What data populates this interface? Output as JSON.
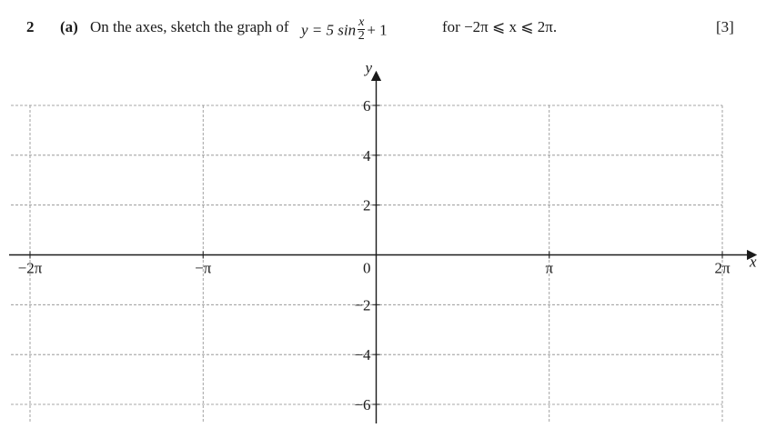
{
  "question": {
    "number": "2",
    "part": "(a)",
    "instruction": "On the axes, sketch the graph of",
    "formula_lhs": "y = 5 sin",
    "formula_num": "x",
    "formula_den": "2",
    "formula_rhs": "+ 1",
    "domain": "for   −2π ⩽ x ⩽ 2π.",
    "marks": "[3]"
  },
  "chart_data": {
    "type": "line",
    "title": "",
    "xlabel": "x",
    "ylabel": "y",
    "xlim": [
      -6.2832,
      6.2832
    ],
    "ylim": [
      -7,
      7
    ],
    "x_ticks": [
      {
        "value": -6.2832,
        "label": "−2π"
      },
      {
        "value": -3.1416,
        "label": "−π"
      },
      {
        "value": 3.1416,
        "label": "π"
      },
      {
        "value": 6.2832,
        "label": "2π"
      }
    ],
    "y_ticks": [
      {
        "value": 6,
        "label": "6"
      },
      {
        "value": 4,
        "label": "4"
      },
      {
        "value": 2,
        "label": "2"
      },
      {
        "value": -2,
        "label": "−2"
      },
      {
        "value": -4,
        "label": "−4"
      },
      {
        "value": -6,
        "label": "−6"
      }
    ],
    "origin_label": "0",
    "grid": true,
    "series": []
  }
}
